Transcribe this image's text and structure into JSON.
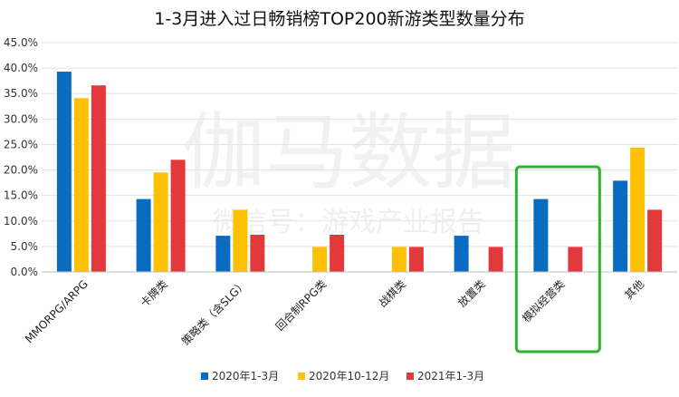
{
  "chart_data": {
    "type": "bar",
    "title": "1-3月进入过日畅销榜TOP200新游类型数量分布",
    "categories": [
      "MMORPG/ARPG",
      "卡牌类",
      "策略类（含SLG）",
      "回合制RPG类",
      "战棋类",
      "放置类",
      "模拟经营类",
      "其他"
    ],
    "series": [
      {
        "name": "2020年1-3月",
        "color": "#0a6cc0",
        "values": [
          39.3,
          14.3,
          7.1,
          0,
          0,
          7.1,
          14.3,
          17.9
        ]
      },
      {
        "name": "2020年10-12月",
        "color": "#fdc002",
        "values": [
          34.1,
          19.5,
          12.2,
          4.9,
          4.9,
          0,
          0,
          24.4
        ]
      },
      {
        "name": "2021年1-3月",
        "color": "#e4393c",
        "values": [
          36.6,
          22.0,
          7.3,
          7.3,
          4.9,
          4.9,
          4.9,
          12.2
        ]
      }
    ],
    "ylim": [
      0,
      45
    ],
    "ytick_step": 5,
    "ytick_labels": [
      "0.0%",
      "5.0%",
      "10.0%",
      "15.0%",
      "20.0%",
      "25.0%",
      "30.0%",
      "35.0%",
      "40.0%",
      "45.0%"
    ],
    "grid": true,
    "legend": "bottom",
    "highlight_category": "模拟经营类",
    "highlight_color": "#2db52d"
  },
  "watermark": {
    "line1": "伽马数据",
    "line2": "微信号：游戏产业报告"
  }
}
